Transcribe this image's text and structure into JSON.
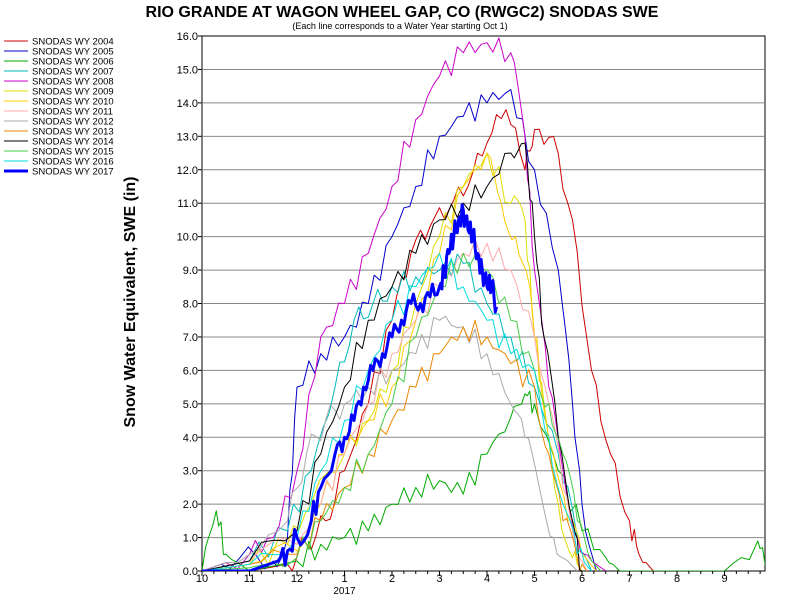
{
  "chart_data": {
    "type": "line",
    "title": "RIO GRANDE AT WAGON WHEEL GAP, CO (RWGC2) SNODAS SWE",
    "subtitle": "(Each line corresponds to a Water Year starting Oct 1)",
    "ylabel": "Snow Water Equivalent, SWE (in)",
    "xlabel": "",
    "ylim": [
      0,
      16
    ],
    "yticks": [
      "0.0",
      "1.0",
      "2.0",
      "3.0",
      "4.0",
      "5.0",
      "6.0",
      "7.0",
      "8.0",
      "9.0",
      "10.0",
      "11.0",
      "12.0",
      "13.0",
      "14.0",
      "15.0",
      "16.0"
    ],
    "xlim": [
      0,
      12
    ],
    "xticks": [
      {
        "pos": 0,
        "label": "10"
      },
      {
        "pos": 1,
        "label": "11"
      },
      {
        "pos": 2,
        "label": "12"
      },
      {
        "pos": 3,
        "label": "1"
      },
      {
        "pos": 4,
        "label": "2"
      },
      {
        "pos": 5,
        "label": "3"
      },
      {
        "pos": 6,
        "label": "4"
      },
      {
        "pos": 7,
        "label": "5"
      },
      {
        "pos": 8,
        "label": "6"
      },
      {
        "pos": 9,
        "label": "7"
      },
      {
        "pos": 10,
        "label": "8"
      },
      {
        "pos": 11,
        "label": "9"
      }
    ],
    "year_label": {
      "pos": 3,
      "label": "2017"
    },
    "grid": "horizontal",
    "legend_position": "top-left, outside plot",
    "series": [
      {
        "name": "SNODAS WY 2004",
        "color": "#cc0000",
        "width": 1,
        "x": [
          0.0,
          1.0,
          1.8,
          2.2,
          2.6,
          3.0,
          3.5,
          4.0,
          4.4,
          4.8,
          5.2,
          5.6,
          6.0,
          6.4,
          6.8,
          7.0,
          7.4,
          7.8,
          8.2,
          8.6,
          9.0,
          9.2,
          9.5
        ],
        "y": [
          0,
          0,
          0.2,
          0.8,
          1.5,
          3.0,
          5.0,
          7.5,
          9.5,
          10.3,
          10.8,
          11.5,
          12.8,
          13.8,
          12.0,
          13.2,
          13.0,
          10.5,
          6.0,
          3.5,
          1.5,
          0.5,
          0
        ]
      },
      {
        "name": "SNODAS WY 2005",
        "color": "#0000cc",
        "width": 1,
        "x": [
          0.0,
          0.8,
          1.5,
          1.8,
          2.0,
          2.5,
          3.0,
          3.5,
          4.0,
          4.5,
          5.0,
          5.5,
          6.0,
          6.5,
          7.0,
          7.5,
          7.8,
          8.0,
          8.3
        ],
        "y": [
          0,
          0.4,
          0.3,
          1.0,
          5.5,
          6.5,
          7.0,
          8.0,
          10.0,
          11.5,
          13.0,
          13.6,
          14.0,
          14.4,
          12.0,
          9.0,
          5.0,
          2.0,
          0
        ]
      },
      {
        "name": "SNODAS WY 2006",
        "color": "#00aa00",
        "width": 1,
        "x": [
          0.0,
          0.3,
          0.5,
          1.0,
          2.0,
          2.5,
          3.0,
          3.5,
          4.0,
          4.5,
          5.0,
          5.5,
          6.0,
          6.5,
          6.8,
          7.0,
          7.5,
          8.0,
          8.5,
          8.8,
          9.0,
          11.0,
          11.7,
          11.9
        ],
        "y": [
          0,
          1.8,
          0.5,
          0,
          0.3,
          0.8,
          1.0,
          1.2,
          2.0,
          2.5,
          2.7,
          2.3,
          3.5,
          4.6,
          5.3,
          5.0,
          3.0,
          1.2,
          0.4,
          0,
          0,
          0,
          0.9,
          0
        ]
      },
      {
        "name": "SNODAS WY 2007",
        "color": "#00bbbb",
        "width": 1,
        "x": [
          0.0,
          1.0,
          1.8,
          2.3,
          2.8,
          3.2,
          3.6,
          4.0,
          4.5,
          5.0,
          5.5,
          6.0,
          6.5,
          7.0,
          7.5,
          7.9,
          8.2
        ],
        "y": [
          0,
          0.3,
          1.2,
          3.0,
          5.5,
          7.5,
          8.0,
          8.5,
          8.8,
          9.0,
          9.2,
          8.0,
          7.0,
          5.5,
          3.5,
          1.0,
          0
        ]
      },
      {
        "name": "SNODAS WY 2008",
        "color": "#cc00cc",
        "width": 1,
        "x": [
          0.0,
          1.0,
          1.5,
          2.0,
          2.5,
          3.0,
          3.5,
          4.0,
          4.5,
          5.0,
          5.5,
          6.0,
          6.5,
          6.8,
          7.0,
          7.3,
          7.6,
          7.9,
          8.2,
          8.5
        ],
        "y": [
          0,
          0.5,
          1.0,
          3.0,
          7.0,
          8.0,
          9.5,
          11.5,
          13.5,
          14.8,
          15.5,
          15.8,
          15.5,
          13.0,
          9.0,
          5.5,
          3.0,
          1.0,
          0.3,
          0
        ]
      },
      {
        "name": "SNODAS WY 2009",
        "color": "#dddd00",
        "width": 1,
        "x": [
          0.0,
          1.0,
          1.8,
          2.3,
          3.0,
          3.5,
          4.0,
          4.5,
          5.0,
          5.5,
          6.0,
          6.5,
          6.8,
          7.0,
          7.2,
          7.5,
          7.8,
          8.0
        ],
        "y": [
          0,
          0.2,
          0.8,
          2.0,
          3.5,
          4.5,
          6.0,
          8.0,
          10.0,
          11.5,
          12.5,
          11.0,
          10.5,
          7.0,
          5.0,
          2.0,
          0.4,
          0
        ]
      },
      {
        "name": "SNODAS WY 2010",
        "color": "#ffcc00",
        "width": 1,
        "x": [
          0.0,
          1.0,
          2.0,
          2.5,
          3.0,
          3.5,
          4.0,
          4.5,
          5.0,
          5.5,
          6.0,
          6.3,
          6.6,
          6.9,
          7.1,
          7.4,
          7.7,
          8.0,
          8.3
        ],
        "y": [
          0,
          0.2,
          0.6,
          2.0,
          3.5,
          4.5,
          5.5,
          7.5,
          9.5,
          11.5,
          12.5,
          11.0,
          10.0,
          8.5,
          6.0,
          3.5,
          1.5,
          0.5,
          0
        ]
      },
      {
        "name": "SNODAS WY 2011",
        "color": "#ffaaaa",
        "width": 1,
        "x": [
          0.0,
          1.0,
          2.0,
          2.5,
          3.0,
          3.5,
          4.0,
          4.5,
          5.0,
          5.5,
          6.0,
          6.5,
          7.0,
          7.3,
          7.6,
          7.9,
          8.1
        ],
        "y": [
          0,
          0.3,
          0.8,
          2.0,
          3.5,
          5.0,
          6.5,
          7.5,
          8.5,
          9.5,
          9.8,
          9.0,
          7.0,
          5.0,
          2.5,
          0.6,
          0
        ]
      },
      {
        "name": "SNODAS WY 2012",
        "color": "#aaaaaa",
        "width": 1,
        "x": [
          0.0,
          1.0,
          1.8,
          2.2,
          2.6,
          3.0,
          3.5,
          4.0,
          4.5,
          5.0,
          5.5,
          6.0,
          6.5,
          6.8,
          7.1,
          7.4,
          7.7,
          7.9
        ],
        "y": [
          0,
          0.5,
          1.5,
          3.5,
          4.5,
          5.0,
          5.5,
          6.0,
          6.5,
          7.5,
          7.3,
          6.5,
          5.0,
          4.0,
          2.5,
          1.0,
          0.3,
          0
        ]
      },
      {
        "name": "SNODAS WY 2013",
        "color": "#ee8800",
        "width": 1,
        "x": [
          0.0,
          1.0,
          2.0,
          2.5,
          3.0,
          3.5,
          4.0,
          4.5,
          5.0,
          5.5,
          6.0,
          6.5,
          7.0,
          7.3,
          7.6,
          7.9,
          8.1
        ],
        "y": [
          0,
          0.2,
          0.5,
          1.5,
          2.5,
          3.5,
          4.5,
          5.5,
          6.5,
          7.3,
          7.0,
          6.2,
          5.5,
          3.5,
          1.5,
          0.4,
          0
        ]
      },
      {
        "name": "SNODAS WY 2014",
        "color": "#000000",
        "width": 1,
        "x": [
          0.0,
          1.0,
          2.0,
          2.5,
          3.0,
          3.5,
          4.0,
          4.5,
          5.0,
          5.5,
          6.0,
          6.5,
          6.8,
          7.0,
          7.2,
          7.5,
          7.8,
          8.0
        ],
        "y": [
          0,
          0.3,
          1.2,
          3.5,
          5.5,
          7.5,
          8.5,
          9.5,
          10.5,
          11.0,
          11.5,
          12.5,
          12.8,
          10.0,
          7.0,
          4.0,
          1.5,
          0
        ]
      },
      {
        "name": "SNODAS WY 2015",
        "color": "#44cc44",
        "width": 1,
        "x": [
          0.0,
          1.0,
          2.0,
          2.5,
          3.0,
          3.5,
          4.0,
          4.5,
          5.0,
          5.5,
          6.0,
          6.5,
          7.0,
          7.3,
          7.6,
          7.9,
          8.2,
          8.4
        ],
        "y": [
          0,
          0.1,
          0.4,
          1.5,
          2.5,
          3.5,
          5.0,
          7.0,
          8.5,
          9.5,
          9.0,
          7.5,
          6.0,
          5.0,
          3.5,
          1.5,
          0.3,
          0
        ]
      },
      {
        "name": "SNODAS WY 2016",
        "color": "#00dddd",
        "width": 1,
        "x": [
          0.0,
          1.0,
          2.0,
          2.5,
          3.0,
          3.5,
          4.0,
          4.5,
          5.0,
          5.5,
          6.0,
          6.5,
          7.0,
          7.3,
          7.6,
          7.9,
          8.2
        ],
        "y": [
          0,
          0.2,
          1.0,
          3.0,
          4.5,
          6.0,
          7.5,
          8.5,
          9.5,
          8.5,
          7.5,
          6.5,
          6.0,
          4.0,
          2.0,
          0.5,
          0
        ]
      },
      {
        "name": "SNODAS WY 2017",
        "color": "#0000ff",
        "width": 3,
        "x": [
          0.0,
          1.0,
          1.6,
          1.8,
          2.0,
          2.3,
          2.5,
          2.8,
          3.0,
          3.2,
          3.4,
          3.6,
          3.8,
          4.0,
          4.2,
          4.4,
          4.6,
          4.8,
          5.0,
          5.1,
          5.2,
          5.3,
          5.4,
          5.5,
          5.6,
          5.7,
          5.8,
          5.9,
          6.0,
          6.1,
          6.2
        ],
        "y": [
          0,
          0,
          0.3,
          0.6,
          1.0,
          1.5,
          2.5,
          3.5,
          4.0,
          4.5,
          5.5,
          6.0,
          6.5,
          7.0,
          7.5,
          8.0,
          8.0,
          8.2,
          8.5,
          9.0,
          9.5,
          10.0,
          10.5,
          10.8,
          10.2,
          10.0,
          9.5,
          9.0,
          8.5,
          8.5,
          7.9
        ]
      }
    ]
  }
}
